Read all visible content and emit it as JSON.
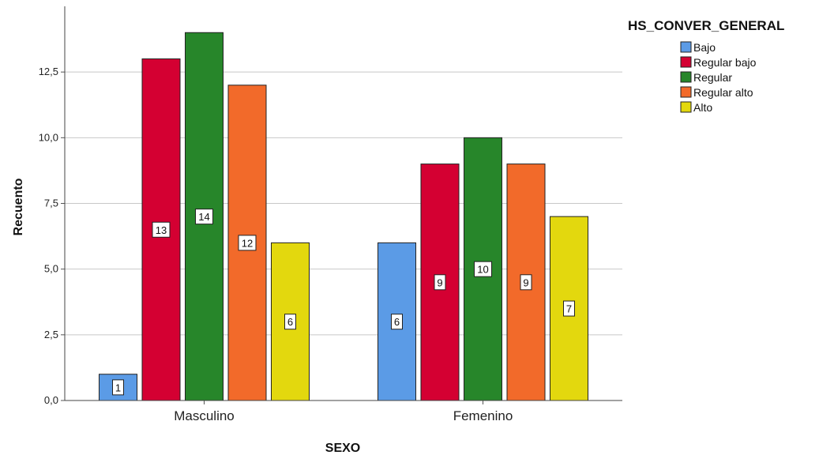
{
  "chart_data": {
    "type": "bar",
    "categories": [
      "Masculino",
      "Femenino"
    ],
    "series": [
      {
        "name": "Bajo",
        "color": "#5b9be6",
        "values": [
          1,
          6
        ]
      },
      {
        "name": "Regular bajo",
        "color": "#d40032",
        "values": [
          13,
          9
        ]
      },
      {
        "name": "Regular",
        "color": "#27862a",
        "values": [
          14,
          10
        ]
      },
      {
        "name": "Regular alto",
        "color": "#f26a2a",
        "values": [
          12,
          9
        ]
      },
      {
        "name": "Alto",
        "color": "#e3d80e",
        "values": [
          6,
          7
        ]
      }
    ],
    "data_labels": [
      [
        "1",
        "6"
      ],
      [
        "13",
        "9"
      ],
      [
        "14",
        "10"
      ],
      [
        "12",
        "9"
      ],
      [
        "6",
        "7"
      ]
    ],
    "xlabel": "SEXO",
    "ylabel": "Recuento",
    "ylim": [
      0,
      15
    ],
    "yticks": [
      0,
      2.5,
      5,
      7.5,
      10,
      12.5
    ],
    "ytick_labels": [
      "0,0",
      "2,5",
      "5,0",
      "7,5",
      "10,0",
      "12,5"
    ],
    "legend_title": "HS_CONVER_GENERAL",
    "legend_position": "top-right",
    "grid": true
  }
}
